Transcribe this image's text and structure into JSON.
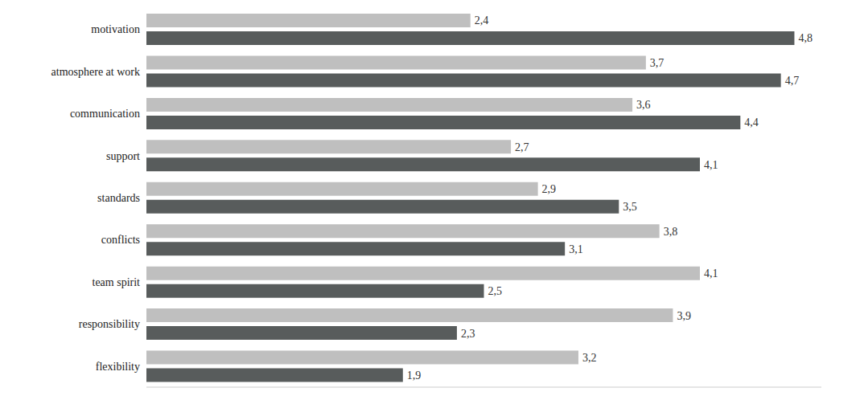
{
  "chart_data": {
    "type": "bar",
    "orientation": "horizontal",
    "categories": [
      "motivation",
      "atmosphere at work",
      "communication",
      "support",
      "standards",
      "conflicts",
      "team spirit",
      "responsibility",
      "flexibility"
    ],
    "series": [
      {
        "color": "#bfbfbf",
        "values": [
          2.4,
          3.7,
          3.6,
          2.7,
          2.9,
          3.8,
          4.1,
          3.9,
          3.2
        ],
        "value_labels": [
          "2,4",
          "3,7",
          "3,6",
          "2,7",
          "2,9",
          "3,8",
          "4,1",
          "3,9",
          "3,2"
        ]
      },
      {
        "color": "#585c5c",
        "values": [
          4.8,
          4.7,
          4.4,
          4.1,
          3.5,
          3.1,
          2.5,
          2.3,
          1.9
        ],
        "value_labels": [
          "4,8",
          "4,7",
          "4,4",
          "4,1",
          "3,5",
          "3,1",
          "2,5",
          "2,3",
          "1,9"
        ]
      }
    ],
    "xlim": [
      0,
      5
    ],
    "data_labels": true,
    "tick_labels": "y",
    "grid": false
  }
}
